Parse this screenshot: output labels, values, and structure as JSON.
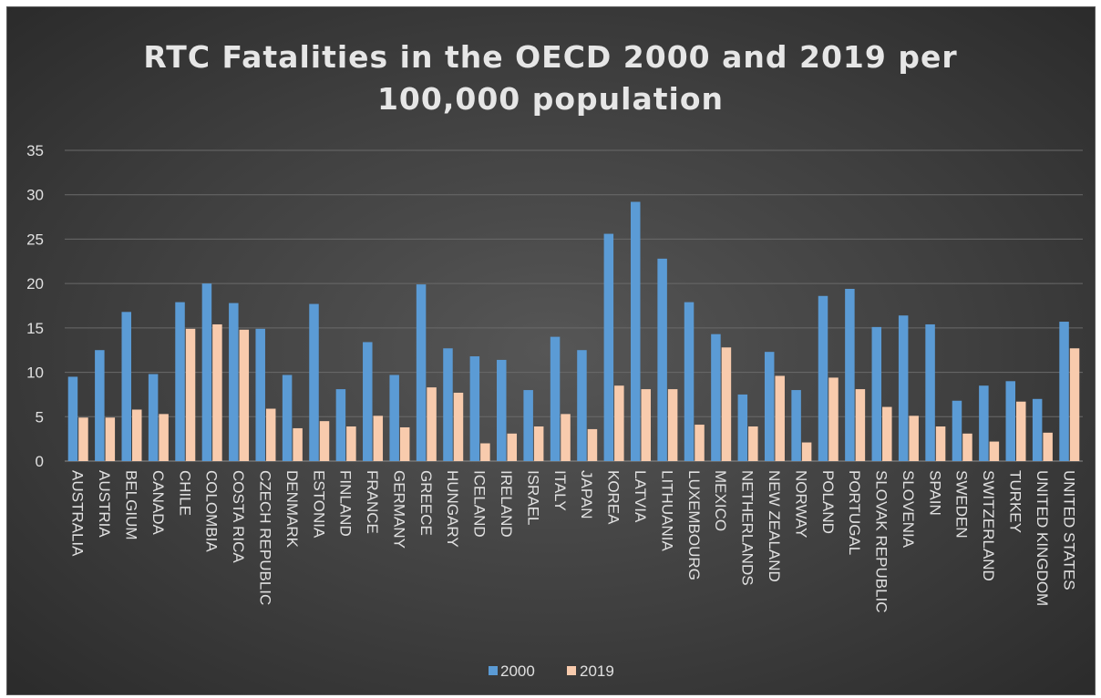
{
  "chart_data": {
    "type": "bar",
    "title_lines": [
      "RTC Fatalities in the OECD 2000 and 2019 per",
      "100,000 population"
    ],
    "xlabel": "",
    "ylabel": "",
    "ylim": [
      0,
      35
    ],
    "yticks": [
      "0",
      "5",
      "10",
      "15",
      "20",
      "25",
      "30",
      "35"
    ],
    "grid": true,
    "legend_position": "bottom",
    "categories": [
      "AUSTRALIA",
      "AUSTRIA",
      "BELGIUM",
      "CANADA",
      "CHILE",
      "COLOMBIA",
      "COSTA RICA",
      "CZECH REPUBLIC",
      "DENMARK",
      "ESTONIA",
      "FINLAND",
      "FRANCE",
      "GERMANY",
      "GREECE",
      "HUNGARY",
      "ICELAND",
      "IRELAND",
      "ISRAEL",
      "ITALY",
      "JAPAN",
      "KOREA",
      "LATVIA",
      "LITHUANIA",
      "LUXEMBOURG",
      "MEXICO",
      "NETHERLANDS",
      "NEW ZEALAND",
      "NORWAY",
      "POLAND",
      "PORTUGAL",
      "SLOVAK REPUBLIC",
      "SLOVENIA",
      "SPAIN",
      "SWEDEN",
      "SWITZERLAND",
      "TURKEY",
      "UNITED KINGDOM",
      "UNITED STATES"
    ],
    "series": [
      {
        "name": "2000",
        "color": "#5b9bd5",
        "values": [
          9.5,
          12.5,
          16.8,
          9.8,
          17.9,
          20.0,
          17.8,
          14.9,
          9.7,
          17.7,
          8.1,
          13.4,
          9.7,
          19.9,
          12.7,
          11.8,
          11.4,
          8.0,
          14.0,
          12.5,
          25.6,
          29.2,
          22.8,
          17.9,
          14.3,
          7.5,
          12.3,
          8.0,
          18.6,
          19.4,
          15.1,
          16.4,
          15.4,
          6.8,
          8.5,
          9.0,
          7.0,
          15.7
        ]
      },
      {
        "name": "2019",
        "color": "#f8cbad",
        "values": [
          4.9,
          4.9,
          5.8,
          5.3,
          14.9,
          15.4,
          14.8,
          5.9,
          3.7,
          4.5,
          3.9,
          5.1,
          3.8,
          8.3,
          7.7,
          2.0,
          3.1,
          3.9,
          5.3,
          3.6,
          8.5,
          8.1,
          8.1,
          4.1,
          12.8,
          3.9,
          9.6,
          2.1,
          9.4,
          8.1,
          6.1,
          5.1,
          3.9,
          3.1,
          2.2,
          6.7,
          3.2,
          12.7
        ]
      }
    ]
  }
}
